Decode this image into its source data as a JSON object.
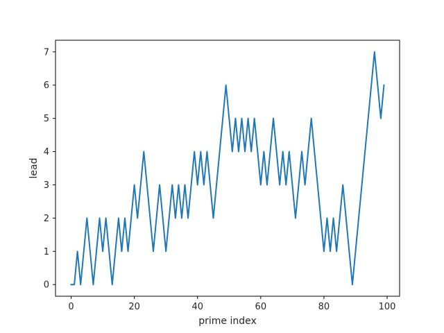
{
  "chart_data": {
    "type": "line",
    "title": "",
    "xlabel": "prime index",
    "ylabel": "lead",
    "xlim": [
      -4.95,
      103.95
    ],
    "ylim": [
      -0.35,
      7.35
    ],
    "xticks": [
      0,
      20,
      40,
      60,
      80,
      100
    ],
    "yticks": [
      0,
      1,
      2,
      3,
      4,
      5,
      6,
      7
    ],
    "grid": false,
    "legend": "none",
    "series": [
      {
        "color": "#1f77b4",
        "x": [
          0,
          1,
          2,
          3,
          4,
          5,
          6,
          7,
          8,
          9,
          10,
          11,
          12,
          13,
          14,
          15,
          16,
          17,
          18,
          19,
          20,
          21,
          22,
          23,
          24,
          25,
          26,
          27,
          28,
          29,
          30,
          31,
          32,
          33,
          34,
          35,
          36,
          37,
          38,
          39,
          40,
          41,
          42,
          43,
          44,
          45,
          46,
          47,
          48,
          49,
          50,
          51,
          52,
          53,
          54,
          55,
          56,
          57,
          58,
          59,
          60,
          61,
          62,
          63,
          64,
          65,
          66,
          67,
          68,
          69,
          70,
          71,
          72,
          73,
          74,
          75,
          76,
          77,
          78,
          79,
          80,
          81,
          82,
          83,
          84,
          85,
          86,
          87,
          88,
          89,
          90,
          91,
          92,
          93,
          94,
          95,
          96,
          97,
          98,
          99
        ],
        "y": [
          0,
          0,
          1,
          0,
          1,
          2,
          1,
          0,
          1,
          2,
          1,
          2,
          1,
          0,
          1,
          2,
          1,
          2,
          1,
          2,
          3,
          2,
          3,
          4,
          3,
          2,
          1,
          2,
          3,
          2,
          1,
          2,
          3,
          2,
          3,
          2,
          3,
          2,
          3,
          4,
          3,
          4,
          3,
          4,
          3,
          2,
          3,
          4,
          5,
          6,
          5,
          4,
          5,
          4,
          5,
          4,
          5,
          4,
          5,
          4,
          3,
          4,
          3,
          4,
          5,
          4,
          3,
          4,
          3,
          4,
          3,
          2,
          3,
          4,
          3,
          4,
          5,
          4,
          3,
          2,
          1,
          2,
          1,
          2,
          1,
          2,
          3,
          2,
          1,
          0,
          1,
          2,
          3,
          4,
          5,
          6,
          7,
          6,
          5,
          6
        ]
      }
    ]
  }
}
